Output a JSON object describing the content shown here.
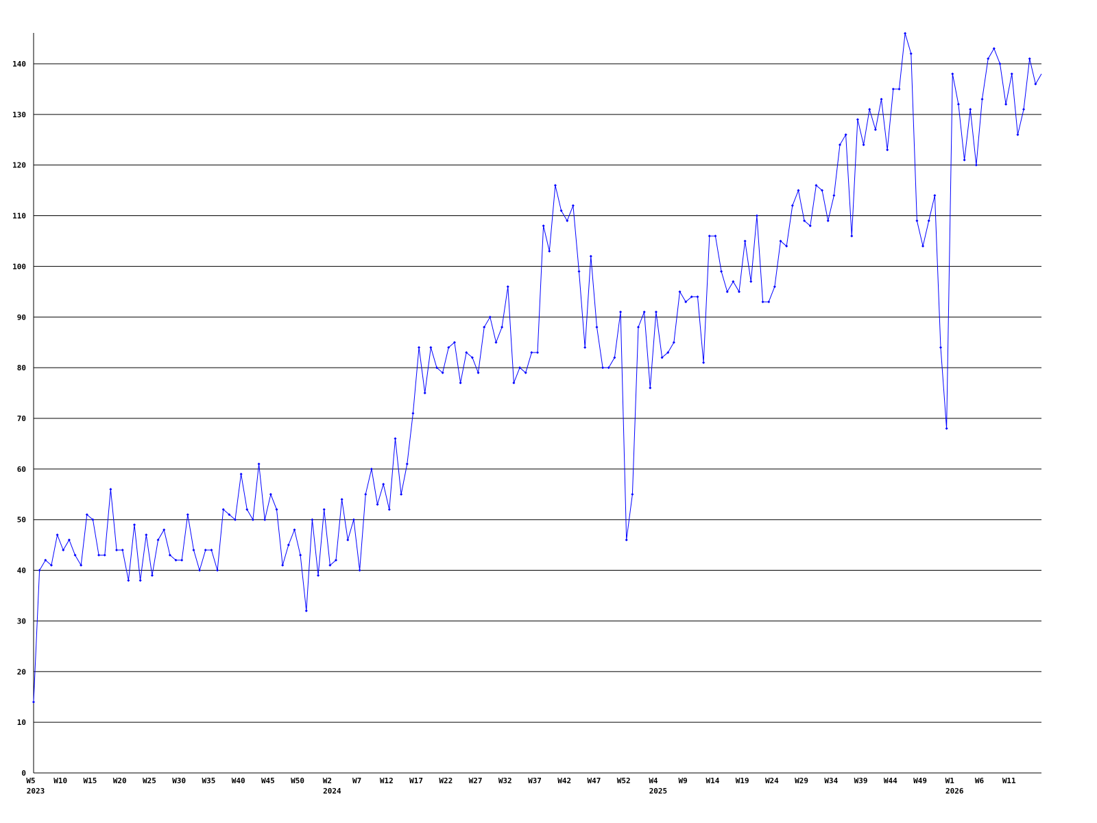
{
  "chart_data": {
    "type": "line",
    "title": "",
    "xlabel": "",
    "ylabel": "",
    "ylim": [
      0,
      146
    ],
    "yticks": [
      0,
      10,
      20,
      30,
      40,
      50,
      60,
      70,
      80,
      90,
      100,
      110,
      120,
      130,
      140
    ],
    "grid": "horizontal",
    "series_color": "#0000ff",
    "x_tick_labels": [
      {
        "index": 0,
        "label": "W5",
        "year": "2023"
      },
      {
        "index": 5,
        "label": "W10"
      },
      {
        "index": 10,
        "label": "W15"
      },
      {
        "index": 15,
        "label": "W20"
      },
      {
        "index": 20,
        "label": "W25"
      },
      {
        "index": 25,
        "label": "W30"
      },
      {
        "index": 30,
        "label": "W35"
      },
      {
        "index": 35,
        "label": "W40"
      },
      {
        "index": 40,
        "label": "W45"
      },
      {
        "index": 45,
        "label": "W50"
      },
      {
        "index": 50,
        "label": "W2",
        "year": "2024"
      },
      {
        "index": 55,
        "label": "W7"
      },
      {
        "index": 60,
        "label": "W12"
      },
      {
        "index": 65,
        "label": "W17"
      },
      {
        "index": 70,
        "label": "W22"
      },
      {
        "index": 75,
        "label": "W27"
      },
      {
        "index": 80,
        "label": "W32"
      },
      {
        "index": 85,
        "label": "W37"
      },
      {
        "index": 90,
        "label": "W42"
      },
      {
        "index": 95,
        "label": "W47"
      },
      {
        "index": 100,
        "label": "W52"
      },
      {
        "index": 105,
        "label": "W4",
        "year": "2025"
      },
      {
        "index": 110,
        "label": "W9"
      },
      {
        "index": 115,
        "label": "W14"
      },
      {
        "index": 120,
        "label": "W19"
      },
      {
        "index": 125,
        "label": "W24"
      },
      {
        "index": 130,
        "label": "W29"
      },
      {
        "index": 135,
        "label": "W34"
      },
      {
        "index": 140,
        "label": "W39"
      },
      {
        "index": 145,
        "label": "W44"
      },
      {
        "index": 150,
        "label": "W49"
      },
      {
        "index": 155,
        "label": "W1",
        "year": "2026"
      },
      {
        "index": 160,
        "label": "W6"
      },
      {
        "index": 165,
        "label": "W11"
      }
    ],
    "values": [
      14,
      40,
      42,
      41,
      47,
      44,
      46,
      43,
      41,
      51,
      50,
      43,
      43,
      56,
      44,
      44,
      38,
      49,
      38,
      47,
      39,
      46,
      48,
      43,
      42,
      42,
      51,
      44,
      40,
      44,
      44,
      40,
      52,
      51,
      50,
      59,
      52,
      50,
      61,
      50,
      55,
      52,
      41,
      45,
      48,
      43,
      32,
      50,
      39,
      52,
      41,
      42,
      54,
      46,
      50,
      40,
      55,
      60,
      53,
      57,
      52,
      66,
      55,
      61,
      71,
      84,
      75,
      84,
      80,
      79,
      84,
      85,
      77,
      83,
      82,
      79,
      88,
      90,
      85,
      88,
      96,
      77,
      80,
      79,
      83,
      83,
      108,
      103,
      116,
      111,
      109,
      112,
      99,
      84,
      102,
      88,
      80,
      80,
      82,
      91,
      46,
      55,
      88,
      91,
      76,
      91,
      82,
      83,
      85,
      95,
      93,
      94,
      94,
      81,
      106,
      106,
      99,
      95,
      97,
      95,
      105,
      97,
      110,
      93,
      93,
      96,
      105,
      104,
      112,
      115,
      109,
      108,
      116,
      115,
      109,
      114,
      124,
      126,
      106,
      129,
      124,
      131,
      127,
      133,
      123,
      135,
      135,
      146,
      142,
      109,
      104,
      109,
      114,
      84,
      68,
      138,
      132,
      121,
      131,
      120,
      133,
      141,
      143,
      140,
      132,
      138,
      126,
      131,
      141,
      136,
      138
    ]
  }
}
